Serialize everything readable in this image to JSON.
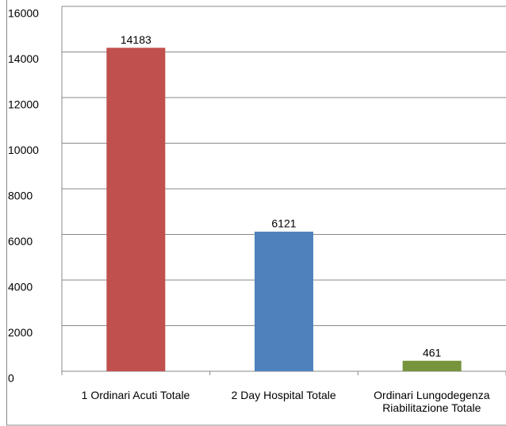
{
  "chart_data": {
    "type": "bar",
    "categories": [
      "1 Ordinari Acuti Totale",
      "2 Day Hospital Totale",
      "Ordinari Lungodegenza\nRiabilitazione Totale"
    ],
    "values": [
      14183,
      6121,
      461
    ],
    "colors": [
      "#c0504d",
      "#4f81bd",
      "#77933c"
    ],
    "ylim": [
      0,
      16000
    ],
    "yticks": [
      0,
      2000,
      4000,
      6000,
      8000,
      10000,
      12000,
      14000,
      16000
    ],
    "grid": true
  }
}
